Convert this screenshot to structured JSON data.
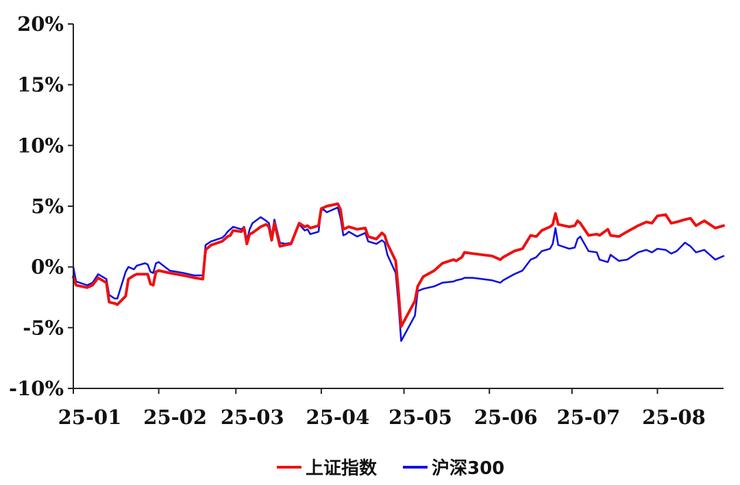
{
  "chart_data": {
    "type": "line",
    "title": "",
    "xlabel": "",
    "ylabel": "",
    "ylim": [
      -10,
      20
    ],
    "y_ticks": [
      -10,
      -5,
      0,
      5,
      10,
      15,
      20
    ],
    "y_tick_labels": [
      "-10%",
      "-5%",
      "0%",
      "5%",
      "10%",
      "15%",
      "20%"
    ],
    "x_range": [
      "2025-01-01",
      "2025-08-25"
    ],
    "x_ticks": [
      "2025-01-01",
      "2025-02-01",
      "2025-03-01",
      "2025-04-01",
      "2025-05-01",
      "2025-06-01",
      "2025-07-01",
      "2025-08-01"
    ],
    "x_tick_labels": [
      "25-01",
      "25-02",
      "25-03",
      "25-04",
      "25-05",
      "25-06",
      "25-07",
      "25-08"
    ],
    "grid": false,
    "legend_position": "bottom-center",
    "series": [
      {
        "name": "上证指数",
        "color": "#ee1111",
        "points": [
          [
            "2025-01-01",
            -0.8
          ],
          [
            "2025-01-02",
            -1.5
          ],
          [
            "2025-01-06",
            -1.7
          ],
          [
            "2025-01-07",
            -1.6
          ],
          [
            "2025-01-08",
            -1.5
          ],
          [
            "2025-01-10",
            -0.9
          ],
          [
            "2025-01-13",
            -1.3
          ],
          [
            "2025-01-14",
            -2.9
          ],
          [
            "2025-01-16",
            -3.0
          ],
          [
            "2025-01-17",
            -3.1
          ],
          [
            "2025-01-20",
            -2.4
          ],
          [
            "2025-01-21",
            -1.0
          ],
          [
            "2025-01-23",
            -0.7
          ],
          [
            "2025-01-24",
            -0.6
          ],
          [
            "2025-01-27",
            -0.6
          ],
          [
            "2025-01-28",
            -0.6
          ],
          [
            "2025-01-29",
            -1.4
          ],
          [
            "2025-01-30",
            -1.5
          ],
          [
            "2025-01-31",
            -0.4
          ],
          [
            "2025-02-01",
            -0.3
          ],
          [
            "2025-02-05",
            -0.5
          ],
          [
            "2025-02-10",
            -0.7
          ],
          [
            "2025-02-14",
            -0.9
          ],
          [
            "2025-02-17",
            -1.0
          ],
          [
            "2025-02-18",
            1.4
          ],
          [
            "2025-02-20",
            1.8
          ],
          [
            "2025-02-24",
            2.1
          ],
          [
            "2025-02-25",
            2.3
          ],
          [
            "2025-02-26",
            2.5
          ],
          [
            "2025-02-27",
            2.6
          ],
          [
            "2025-02-28",
            3.0
          ],
          [
            "2025-03-03",
            2.9
          ],
          [
            "2025-03-04",
            3.2
          ],
          [
            "2025-03-05",
            1.9
          ],
          [
            "2025-03-06",
            2.7
          ],
          [
            "2025-03-07",
            2.8
          ],
          [
            "2025-03-10",
            3.3
          ],
          [
            "2025-03-12",
            3.5
          ],
          [
            "2025-03-13",
            3.3
          ],
          [
            "2025-03-14",
            2.2
          ],
          [
            "2025-03-15",
            3.6
          ],
          [
            "2025-03-17",
            1.7
          ],
          [
            "2025-03-19",
            1.8
          ],
          [
            "2025-03-21",
            1.9
          ],
          [
            "2025-03-24",
            3.6
          ],
          [
            "2025-03-26",
            3.3
          ],
          [
            "2025-03-27",
            3.4
          ],
          [
            "2025-03-28",
            3.2
          ],
          [
            "2025-03-31",
            3.4
          ],
          [
            "2025-04-01",
            4.8
          ],
          [
            "2025-04-02",
            4.9
          ],
          [
            "2025-04-03",
            5.0
          ],
          [
            "2025-04-07",
            5.2
          ],
          [
            "2025-04-08",
            4.7
          ],
          [
            "2025-04-09",
            3.1
          ],
          [
            "2025-04-10",
            3.2
          ],
          [
            "2025-04-11",
            3.3
          ],
          [
            "2025-04-14",
            3.1
          ],
          [
            "2025-04-17",
            3.2
          ],
          [
            "2025-04-18",
            2.5
          ],
          [
            "2025-04-21",
            2.3
          ],
          [
            "2025-04-23",
            2.8
          ],
          [
            "2025-04-24",
            2.6
          ],
          [
            "2025-04-25",
            1.9
          ],
          [
            "2025-04-28",
            0.5
          ],
          [
            "2025-04-29",
            -2.0
          ],
          [
            "2025-04-30",
            -4.9
          ],
          [
            "2025-05-05",
            -2.8
          ],
          [
            "2025-05-06",
            -1.6
          ],
          [
            "2025-05-08",
            -0.8
          ],
          [
            "2025-05-12",
            -0.3
          ],
          [
            "2025-05-15",
            0.3
          ],
          [
            "2025-05-19",
            0.6
          ],
          [
            "2025-05-20",
            0.5
          ],
          [
            "2025-05-22",
            0.8
          ],
          [
            "2025-05-23",
            1.2
          ],
          [
            "2025-05-26",
            1.1
          ],
          [
            "2025-06-02",
            0.9
          ],
          [
            "2025-06-05",
            0.6
          ],
          [
            "2025-06-06",
            0.8
          ],
          [
            "2025-06-10",
            1.3
          ],
          [
            "2025-06-13",
            1.5
          ],
          [
            "2025-06-16",
            2.6
          ],
          [
            "2025-06-18",
            2.5
          ],
          [
            "2025-06-20",
            3.0
          ],
          [
            "2025-06-23",
            3.3
          ],
          [
            "2025-06-24",
            3.5
          ],
          [
            "2025-06-25",
            4.4
          ],
          [
            "2025-06-26",
            3.5
          ],
          [
            "2025-06-30",
            3.3
          ],
          [
            "2025-07-02",
            3.4
          ],
          [
            "2025-07-03",
            3.8
          ],
          [
            "2025-07-04",
            3.6
          ],
          [
            "2025-07-07",
            2.6
          ],
          [
            "2025-07-10",
            2.7
          ],
          [
            "2025-07-11",
            2.6
          ],
          [
            "2025-07-14",
            3.1
          ],
          [
            "2025-07-15",
            2.6
          ],
          [
            "2025-07-18",
            2.5
          ],
          [
            "2025-07-21",
            2.9
          ],
          [
            "2025-07-25",
            3.4
          ],
          [
            "2025-07-28",
            3.7
          ],
          [
            "2025-07-30",
            3.6
          ],
          [
            "2025-08-01",
            4.2
          ],
          [
            "2025-08-04",
            4.3
          ],
          [
            "2025-08-06",
            3.6
          ],
          [
            "2025-08-08",
            3.7
          ],
          [
            "2025-08-11",
            3.9
          ],
          [
            "2025-08-13",
            4.0
          ],
          [
            "2025-08-15",
            3.4
          ],
          [
            "2025-08-18",
            3.8
          ],
          [
            "2025-08-22",
            3.2
          ],
          [
            "2025-08-25",
            3.4
          ]
        ]
      },
      {
        "name": "沪深300",
        "color": "#1111dd",
        "points": [
          [
            "2025-01-01",
            0.0
          ],
          [
            "2025-01-02",
            -1.2
          ],
          [
            "2025-01-06",
            -1.5
          ],
          [
            "2025-01-07",
            -1.4
          ],
          [
            "2025-01-08",
            -1.3
          ],
          [
            "2025-01-10",
            -0.6
          ],
          [
            "2025-01-13",
            -1.0
          ],
          [
            "2025-01-14",
            -2.3
          ],
          [
            "2025-01-16",
            -2.6
          ],
          [
            "2025-01-17",
            -2.6
          ],
          [
            "2025-01-20",
            -0.4
          ],
          [
            "2025-01-21",
            0.0
          ],
          [
            "2025-01-23",
            -0.2
          ],
          [
            "2025-01-24",
            0.1
          ],
          [
            "2025-01-27",
            0.3
          ],
          [
            "2025-01-28",
            0.2
          ],
          [
            "2025-01-29",
            -0.4
          ],
          [
            "2025-01-30",
            -0.5
          ],
          [
            "2025-01-31",
            0.3
          ],
          [
            "2025-02-01",
            0.4
          ],
          [
            "2025-02-05",
            -0.3
          ],
          [
            "2025-02-10",
            -0.5
          ],
          [
            "2025-02-14",
            -0.7
          ],
          [
            "2025-02-17",
            -0.7
          ],
          [
            "2025-02-18",
            1.8
          ],
          [
            "2025-02-20",
            2.1
          ],
          [
            "2025-02-24",
            2.4
          ],
          [
            "2025-02-25",
            2.6
          ],
          [
            "2025-02-26",
            2.9
          ],
          [
            "2025-02-27",
            3.1
          ],
          [
            "2025-02-28",
            3.3
          ],
          [
            "2025-03-03",
            3.1
          ],
          [
            "2025-03-04",
            3.3
          ],
          [
            "2025-03-05",
            2.2
          ],
          [
            "2025-03-06",
            3.1
          ],
          [
            "2025-03-07",
            3.6
          ],
          [
            "2025-03-10",
            4.1
          ],
          [
            "2025-03-12",
            3.8
          ],
          [
            "2025-03-13",
            3.6
          ],
          [
            "2025-03-14",
            2.5
          ],
          [
            "2025-03-15",
            3.9
          ],
          [
            "2025-03-17",
            2.0
          ],
          [
            "2025-03-19",
            1.9
          ],
          [
            "2025-03-21",
            2.0
          ],
          [
            "2025-03-24",
            3.5
          ],
          [
            "2025-03-26",
            3.0
          ],
          [
            "2025-03-27",
            3.1
          ],
          [
            "2025-03-28",
            2.7
          ],
          [
            "2025-03-31",
            2.9
          ],
          [
            "2025-04-01",
            4.7
          ],
          [
            "2025-04-02",
            4.7
          ],
          [
            "2025-04-03",
            4.5
          ],
          [
            "2025-04-07",
            4.9
          ],
          [
            "2025-04-08",
            4.0
          ],
          [
            "2025-04-09",
            2.6
          ],
          [
            "2025-04-10",
            2.7
          ],
          [
            "2025-04-11",
            2.9
          ],
          [
            "2025-04-14",
            2.5
          ],
          [
            "2025-04-17",
            2.8
          ],
          [
            "2025-04-18",
            2.1
          ],
          [
            "2025-04-21",
            1.9
          ],
          [
            "2025-04-23",
            2.2
          ],
          [
            "2025-04-24",
            2.0
          ],
          [
            "2025-04-25",
            1.0
          ],
          [
            "2025-04-28",
            -0.5
          ],
          [
            "2025-04-29",
            -3.0
          ],
          [
            "2025-04-30",
            -6.1
          ],
          [
            "2025-05-05",
            -4.0
          ],
          [
            "2025-05-06",
            -2.0
          ],
          [
            "2025-05-08",
            -1.8
          ],
          [
            "2025-05-12",
            -1.6
          ],
          [
            "2025-05-15",
            -1.3
          ],
          [
            "2025-05-19",
            -1.2
          ],
          [
            "2025-05-20",
            -1.1
          ],
          [
            "2025-05-22",
            -1.0
          ],
          [
            "2025-05-23",
            -0.9
          ],
          [
            "2025-05-26",
            -0.9
          ],
          [
            "2025-06-02",
            -1.1
          ],
          [
            "2025-06-05",
            -1.3
          ],
          [
            "2025-06-06",
            -1.1
          ],
          [
            "2025-06-10",
            -0.6
          ],
          [
            "2025-06-13",
            -0.3
          ],
          [
            "2025-06-16",
            0.6
          ],
          [
            "2025-06-18",
            0.8
          ],
          [
            "2025-06-20",
            1.3
          ],
          [
            "2025-06-23",
            1.5
          ],
          [
            "2025-06-24",
            1.9
          ],
          [
            "2025-06-25",
            3.2
          ],
          [
            "2025-06-26",
            1.8
          ],
          [
            "2025-06-30",
            1.5
          ],
          [
            "2025-07-02",
            1.6
          ],
          [
            "2025-07-03",
            2.3
          ],
          [
            "2025-07-04",
            2.5
          ],
          [
            "2025-07-07",
            1.3
          ],
          [
            "2025-07-10",
            1.2
          ],
          [
            "2025-07-11",
            0.6
          ],
          [
            "2025-07-14",
            0.4
          ],
          [
            "2025-07-15",
            1.0
          ],
          [
            "2025-07-18",
            0.5
          ],
          [
            "2025-07-21",
            0.6
          ],
          [
            "2025-07-25",
            1.2
          ],
          [
            "2025-07-28",
            1.4
          ],
          [
            "2025-07-30",
            1.2
          ],
          [
            "2025-08-01",
            1.5
          ],
          [
            "2025-08-04",
            1.4
          ],
          [
            "2025-08-06",
            1.1
          ],
          [
            "2025-08-08",
            1.3
          ],
          [
            "2025-08-11",
            2.0
          ],
          [
            "2025-08-13",
            1.7
          ],
          [
            "2025-08-15",
            1.2
          ],
          [
            "2025-08-18",
            1.4
          ],
          [
            "2025-08-22",
            0.6
          ],
          [
            "2025-08-25",
            0.9
          ]
        ]
      }
    ]
  }
}
